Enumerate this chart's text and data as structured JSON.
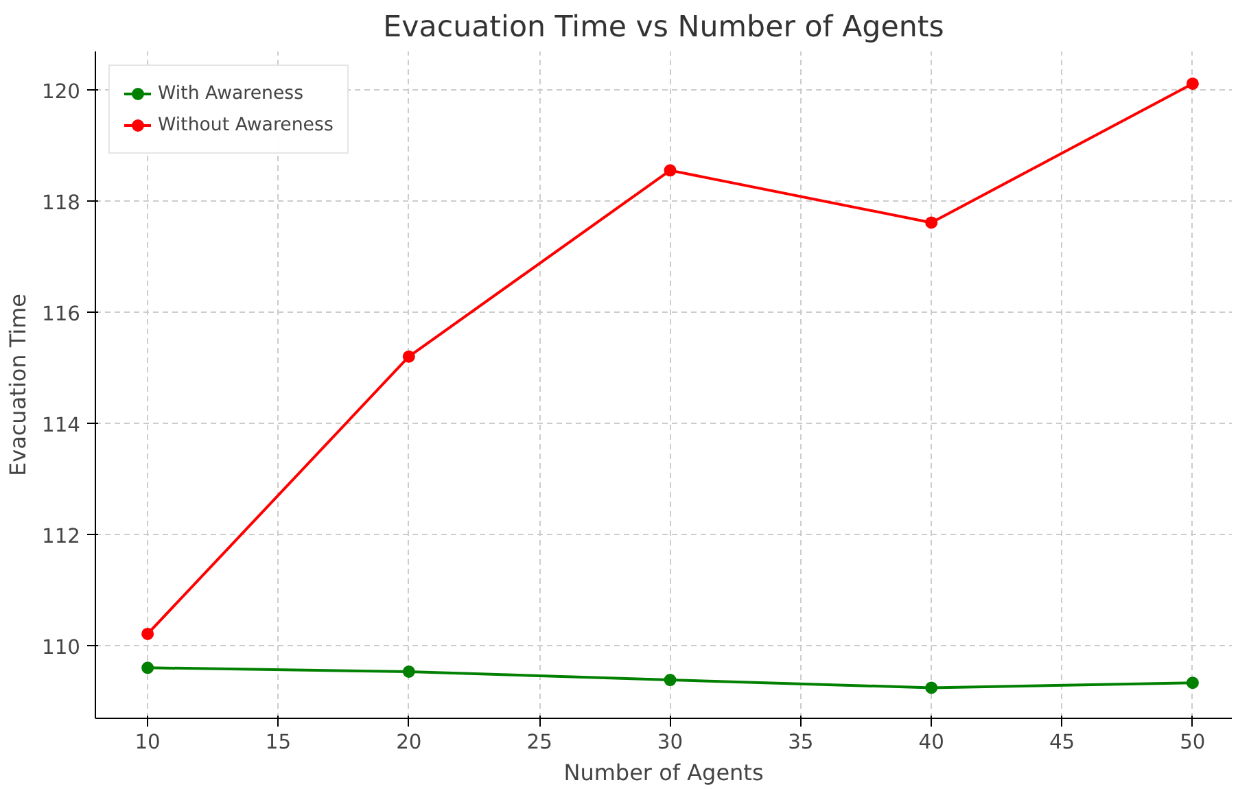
{
  "chart_data": {
    "type": "line",
    "title": "Evacuation Time vs Number of Agents",
    "xlabel": "Number of Agents",
    "ylabel": "Evacuation Time",
    "x": [
      10,
      20,
      30,
      40,
      50
    ],
    "series": [
      {
        "name": "With Awareness",
        "color": "#008000",
        "values": [
          109.61,
          109.54,
          109.39,
          109.25,
          109.34
        ]
      },
      {
        "name": "Without Awareness",
        "color": "#ff0000",
        "values": [
          110.22,
          115.21,
          118.56,
          117.62,
          120.12
        ]
      }
    ],
    "xlim": [
      8.0,
      51.5
    ],
    "ylim": [
      108.7,
      120.7
    ],
    "xticks": [
      10,
      15,
      20,
      25,
      30,
      35,
      40,
      45,
      50
    ],
    "yticks": [
      110,
      112,
      114,
      116,
      118,
      120
    ],
    "grid": true,
    "legend": "top left",
    "marker": "circle",
    "line_style": "solid"
  }
}
